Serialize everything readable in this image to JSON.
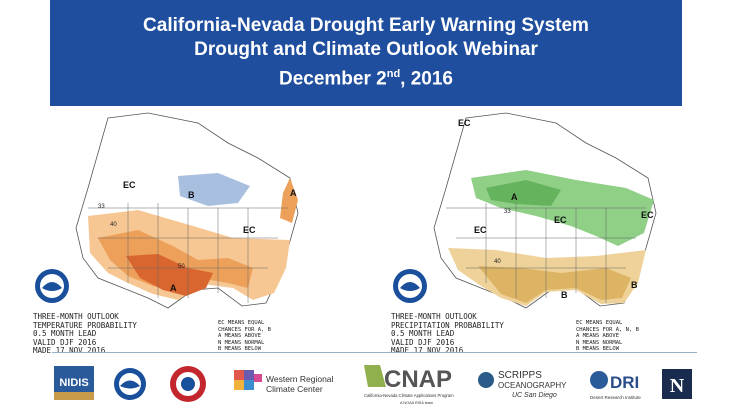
{
  "header": {
    "line1": "California-Nevada Drought Early Warning System",
    "line2": "Drought and Climate Outlook Webinar",
    "line3_prefix": "December 2",
    "line3_sup": "nd",
    "line3_suffix": ", 2016",
    "background": "#1f4e9e"
  },
  "temperature_map": {
    "info": "THREE-MONTH OUTLOOK\nTEMPERATURE PROBABILITY\n0.5 MONTH LEAD\nVALID DJF 2016\nMADE 17 NOV 2016",
    "legend": "EC MEANS EQUAL\nCHANCES FOR A, B\nA MEANS ABOVE\nN MEANS NORMAL\nB MEANS BELOW",
    "labels": {
      "ec_west": "EC",
      "b_north": "B",
      "ec_central": "EC",
      "a_south": "A",
      "a_east": "A",
      "c40": "40",
      "c50": "50",
      "c33": "33"
    },
    "colors": {
      "above_light": "#f6c792",
      "above_mid": "#eda05a",
      "above_dark": "#d9652f",
      "below": "#a9bfe0"
    }
  },
  "precipitation_map": {
    "info": "THREE-MONTH OUTLOOK\nPRECIPITATION PROBABILITY\n0.5 MONTH LEAD\nVALID DJF 2016\nMADE 17 NOV 2016",
    "legend": "EC MEANS EQUAL\nCHANCES FOR A, N, B\nA MEANS ABOVE\nN MEANS NORMAL\nB MEANS BELOW",
    "labels": {
      "ec_nw": "EC",
      "a_north": "A",
      "ec_mid": "EC",
      "ec_west": "EC",
      "ec_ne": "EC",
      "b_south": "B",
      "b_se": "B",
      "c40": "40",
      "c33": "33"
    },
    "colors": {
      "above": "#8fcf86",
      "above_dark": "#66b35e",
      "below_light": "#eed29a",
      "below_mid": "#ddb463"
    }
  },
  "logos": {
    "nidis": "NIDIS",
    "wrcc_line1": "Western Regional",
    "wrcc_line2": "Climate Center",
    "cnap_main": "CNAP",
    "cnap_sub": "California-Nevada Climate Applications Program",
    "cnap_sub2": "A NOAA RISA team",
    "scripps_line1": "SCRIPPS",
    "scripps_line2": "OCEANOGRAPHY",
    "scripps_line3": "UC San Diego",
    "dri_main": "DRI",
    "dri_sub": "Desert Research Institute",
    "nevada": "N"
  }
}
